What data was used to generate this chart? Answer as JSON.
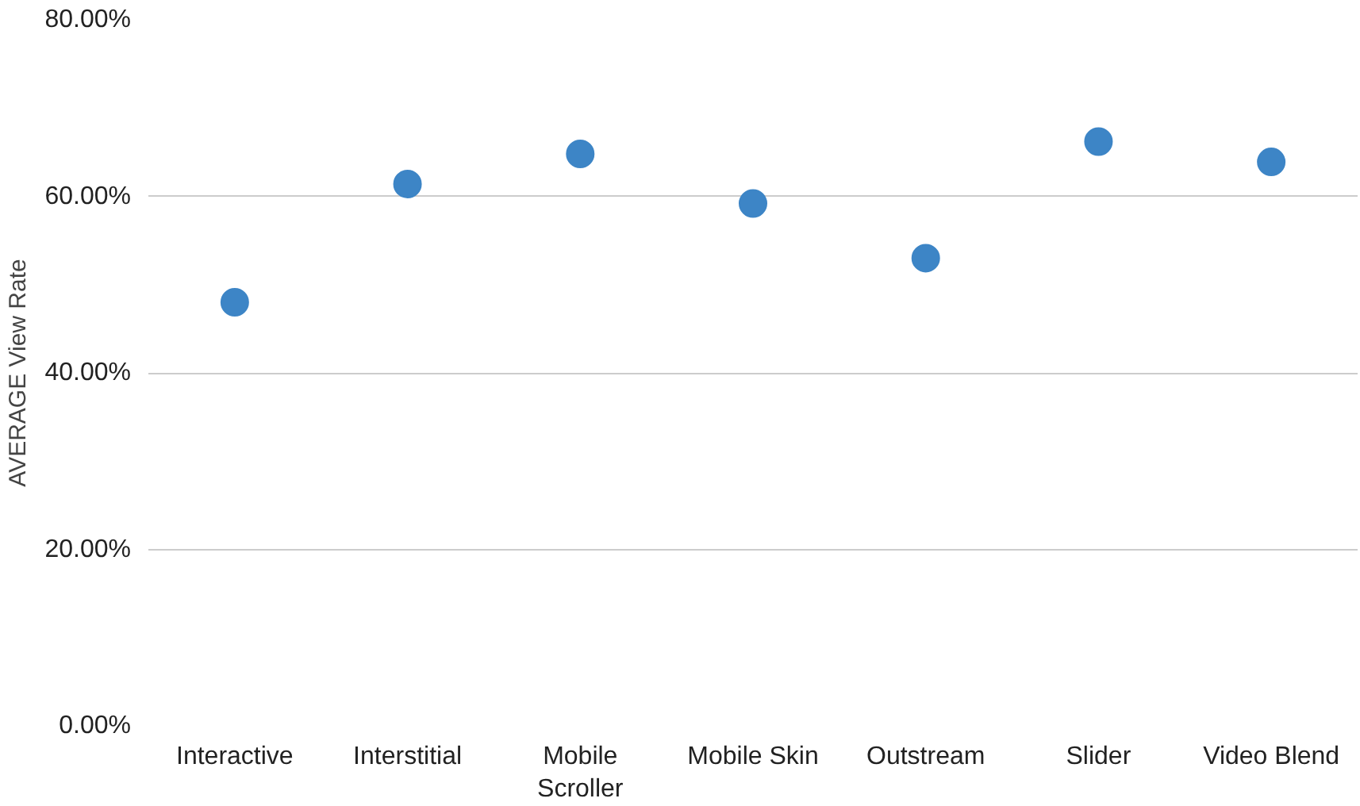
{
  "chart_data": {
    "type": "scatter",
    "ylabel": "AVERAGE View Rate",
    "categories": [
      "Interactive",
      "Interstitial",
      "Mobile Scroller",
      "Mobile Skin",
      "Outstream",
      "Slider",
      "Video Blend"
    ],
    "series": [
      {
        "color": "#3d85c6",
        "values": [
          48.0,
          61.4,
          64.8,
          59.2,
          53.0,
          66.2,
          63.9
        ]
      }
    ],
    "ylim": [
      0,
      80
    ],
    "yticks": [
      {
        "value": 0,
        "label": "0.00%"
      },
      {
        "value": 20,
        "label": "20.00%"
      },
      {
        "value": 40,
        "label": "40.00%"
      },
      {
        "value": 60,
        "label": "60.00%"
      },
      {
        "value": 80,
        "label": "80.00%"
      }
    ],
    "grid": "y",
    "marker": "circle"
  }
}
